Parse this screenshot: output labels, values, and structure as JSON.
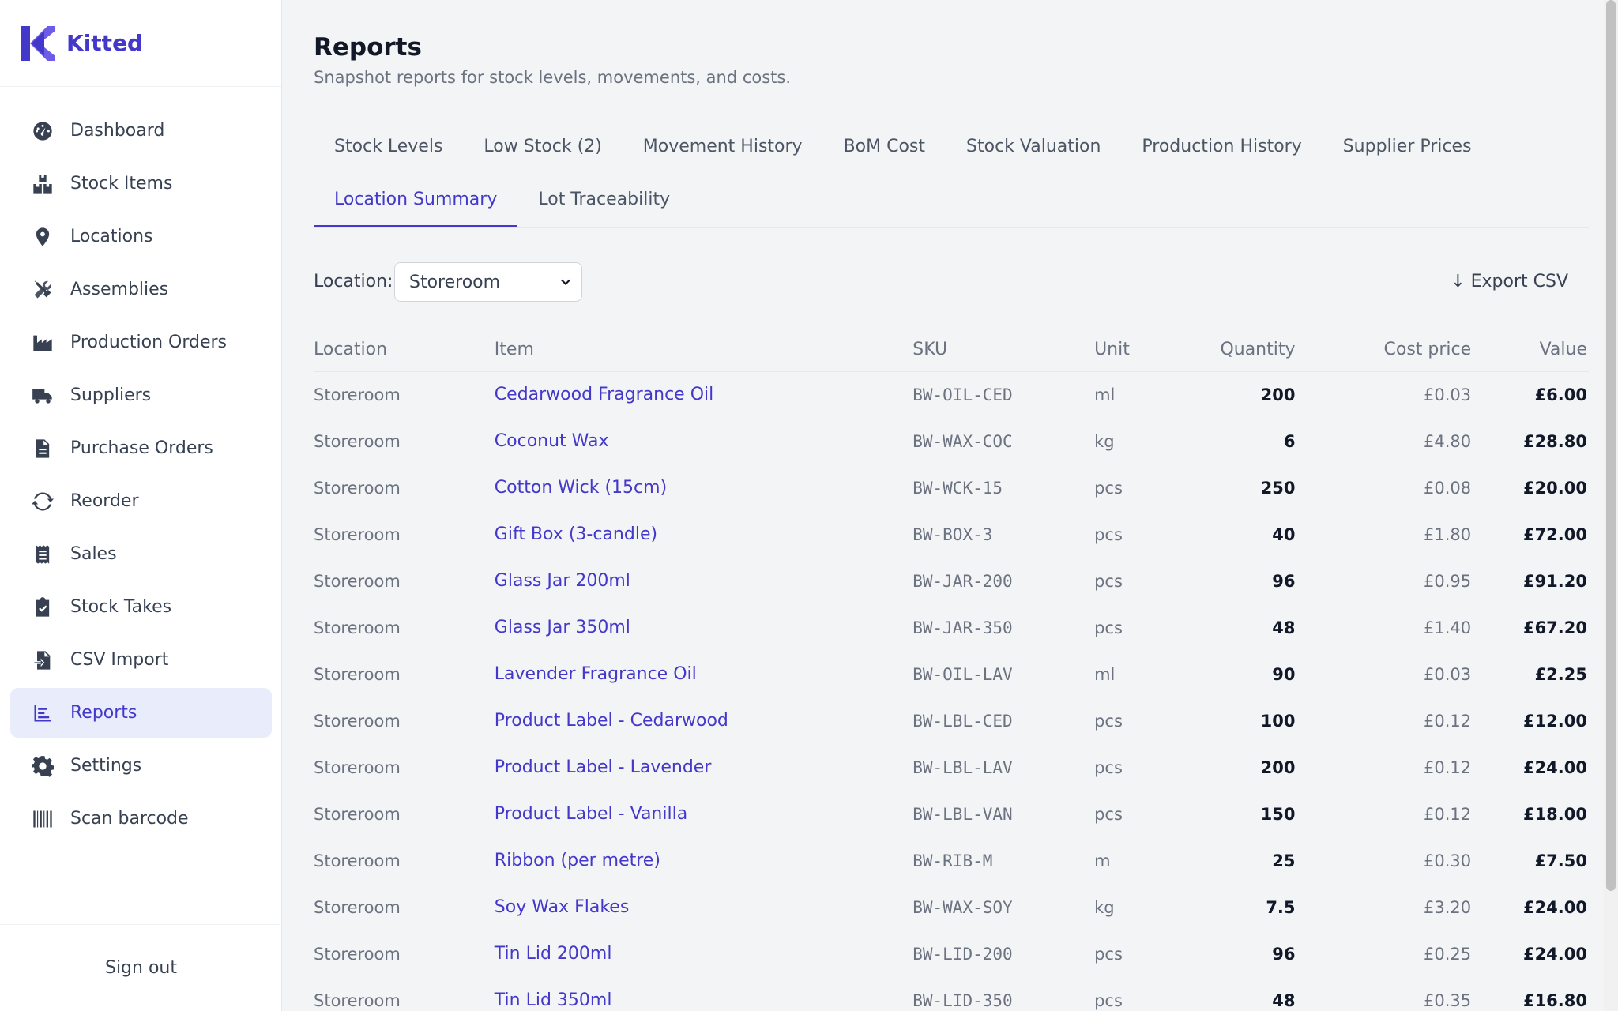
{
  "app": {
    "name": "Kitted"
  },
  "sidebar": {
    "items": [
      {
        "label": "Dashboard",
        "icon": "dashboard-gauge-icon"
      },
      {
        "label": "Stock Items",
        "icon": "boxes-icon"
      },
      {
        "label": "Locations",
        "icon": "location-pin-icon"
      },
      {
        "label": "Assemblies",
        "icon": "tools-icon"
      },
      {
        "label": "Production Orders",
        "icon": "factory-icon"
      },
      {
        "label": "Suppliers",
        "icon": "truck-icon"
      },
      {
        "label": "Purchase Orders",
        "icon": "document-icon"
      },
      {
        "label": "Reorder",
        "icon": "refresh-icon"
      },
      {
        "label": "Sales",
        "icon": "receipt-icon"
      },
      {
        "label": "Stock Takes",
        "icon": "clipboard-check-icon"
      },
      {
        "label": "CSV Import",
        "icon": "file-import-icon"
      },
      {
        "label": "Reports",
        "icon": "bar-chart-icon",
        "active": true
      },
      {
        "label": "Settings",
        "icon": "gear-icon"
      },
      {
        "label": "Scan barcode",
        "icon": "barcode-icon"
      }
    ],
    "signout": "Sign out"
  },
  "header": {
    "title": "Reports",
    "subtitle": "Snapshot reports for stock levels, movements, and costs."
  },
  "tabs": {
    "row1": [
      "Stock Levels",
      "Low Stock (2)",
      "Movement History",
      "BoM Cost",
      "Stock Valuation",
      "Production History",
      "Supplier Prices"
    ],
    "row2": [
      "Location Summary",
      "Lot Traceability"
    ],
    "active": "Location Summary"
  },
  "filter": {
    "label": "Location:",
    "selected": "Storeroom",
    "export_label": "↓ Export CSV"
  },
  "table": {
    "headers": {
      "location": "Location",
      "item": "Item",
      "sku": "SKU",
      "unit": "Unit",
      "quantity": "Quantity",
      "cost": "Cost price",
      "value": "Value"
    },
    "rows": [
      {
        "location": "Storeroom",
        "item": "Cedarwood Fragrance Oil",
        "sku": "BW-OIL-CED",
        "unit": "ml",
        "quantity": "200",
        "cost": "£0.03",
        "value": "£6.00"
      },
      {
        "location": "Storeroom",
        "item": "Coconut Wax",
        "sku": "BW-WAX-COC",
        "unit": "kg",
        "quantity": "6",
        "cost": "£4.80",
        "value": "£28.80"
      },
      {
        "location": "Storeroom",
        "item": "Cotton Wick (15cm)",
        "sku": "BW-WCK-15",
        "unit": "pcs",
        "quantity": "250",
        "cost": "£0.08",
        "value": "£20.00"
      },
      {
        "location": "Storeroom",
        "item": "Gift Box (3-candle)",
        "sku": "BW-BOX-3",
        "unit": "pcs",
        "quantity": "40",
        "cost": "£1.80",
        "value": "£72.00"
      },
      {
        "location": "Storeroom",
        "item": "Glass Jar 200ml",
        "sku": "BW-JAR-200",
        "unit": "pcs",
        "quantity": "96",
        "cost": "£0.95",
        "value": "£91.20"
      },
      {
        "location": "Storeroom",
        "item": "Glass Jar 350ml",
        "sku": "BW-JAR-350",
        "unit": "pcs",
        "quantity": "48",
        "cost": "£1.40",
        "value": "£67.20"
      },
      {
        "location": "Storeroom",
        "item": "Lavender Fragrance Oil",
        "sku": "BW-OIL-LAV",
        "unit": "ml",
        "quantity": "90",
        "cost": "£0.03",
        "value": "£2.25"
      },
      {
        "location": "Storeroom",
        "item": "Product Label - Cedarwood",
        "sku": "BW-LBL-CED",
        "unit": "pcs",
        "quantity": "100",
        "cost": "£0.12",
        "value": "£12.00"
      },
      {
        "location": "Storeroom",
        "item": "Product Label - Lavender",
        "sku": "BW-LBL-LAV",
        "unit": "pcs",
        "quantity": "200",
        "cost": "£0.12",
        "value": "£24.00"
      },
      {
        "location": "Storeroom",
        "item": "Product Label - Vanilla",
        "sku": "BW-LBL-VAN",
        "unit": "pcs",
        "quantity": "150",
        "cost": "£0.12",
        "value": "£18.00"
      },
      {
        "location": "Storeroom",
        "item": "Ribbon (per metre)",
        "sku": "BW-RIB-M",
        "unit": "m",
        "quantity": "25",
        "cost": "£0.30",
        "value": "£7.50"
      },
      {
        "location": "Storeroom",
        "item": "Soy Wax Flakes",
        "sku": "BW-WAX-SOY",
        "unit": "kg",
        "quantity": "7.5",
        "cost": "£3.20",
        "value": "£24.00"
      },
      {
        "location": "Storeroom",
        "item": "Tin Lid 200ml",
        "sku": "BW-LID-200",
        "unit": "pcs",
        "quantity": "96",
        "cost": "£0.25",
        "value": "£24.00"
      },
      {
        "location": "Storeroom",
        "item": "Tin Lid 350ml",
        "sku": "BW-LID-350",
        "unit": "pcs",
        "quantity": "48",
        "cost": "£0.35",
        "value": "£16.80"
      }
    ]
  },
  "colors": {
    "accent": "#4338ca",
    "active_bg": "#e8ecfb",
    "background": "#f3f4f6"
  }
}
